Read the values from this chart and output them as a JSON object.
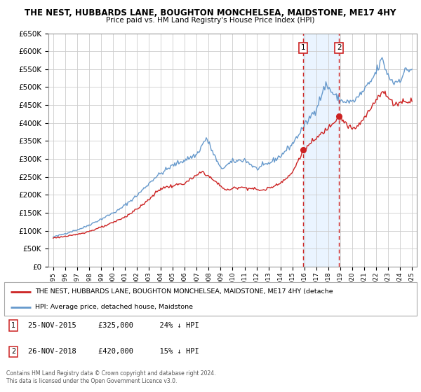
{
  "title": "THE NEST, HUBBARDS LANE, BOUGHTON MONCHELSEA, MAIDSTONE, ME17 4HY",
  "subtitle": "Price paid vs. HM Land Registry's House Price Index (HPI)",
  "ylim": [
    0,
    650000
  ],
  "yticks": [
    0,
    50000,
    100000,
    150000,
    200000,
    250000,
    300000,
    350000,
    400000,
    450000,
    500000,
    550000,
    600000,
    650000
  ],
  "xlim_start": 1994.6,
  "xlim_end": 2025.4,
  "sale1_date": 2015.9,
  "sale1_price": 325000,
  "sale2_date": 2018.9,
  "sale2_price": 420000,
  "sale1_note": "25-NOV-2015     £325,000      24% ↓ HPI",
  "sale2_note": "26-NOV-2018     £420,000      15% ↓ HPI",
  "legend_line1": "THE NEST, HUBBARDS LANE, BOUGHTON MONCHELSEA, MAIDSTONE, ME17 4HY (detache",
  "legend_line2": "HPI: Average price, detached house, Maidstone",
  "footer": "Contains HM Land Registry data © Crown copyright and database right 2024.\nThis data is licensed under the Open Government Licence v3.0.",
  "hpi_color": "#6699cc",
  "price_color": "#cc2222",
  "shading_color": "#ddeeff",
  "grid_color": "#cccccc",
  "label_box_color": "#cc2222"
}
